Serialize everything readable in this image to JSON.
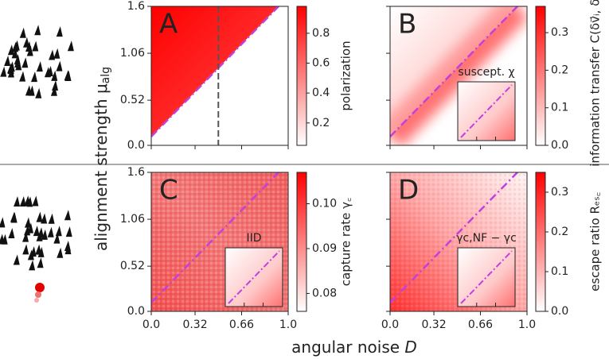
{
  "chart_data": {
    "type": "heatmap-grid",
    "xlabel": {
      "main": "angular noise ",
      "var": "D"
    },
    "ylabel": {
      "main": "alignment strength μ",
      "sub": "alg"
    },
    "xlim": [
      0,
      1
    ],
    "ylim": [
      0,
      1.6
    ],
    "xticks": [
      {
        "value": 0,
        "label": "0.0"
      },
      0.32,
      0.66,
      {
        "value": 1,
        "label": "1.0"
      }
    ],
    "yticks": [
      {
        "value": 0,
        "label": "0.0"
      },
      0.52,
      1.06,
      1.6
    ],
    "critical_line": {
      "x": [
        0,
        0.93
      ],
      "y": [
        0.1,
        1.6
      ]
    },
    "panels": [
      {
        "letter": "A",
        "style": "polarization",
        "color": "#ff0000",
        "dashed_x": 0.49,
        "colorbar": {
          "label": "polarization",
          "lim": [
            0.05,
            0.98
          ],
          "ticks": [
            0.2,
            0.4,
            0.6,
            0.8
          ]
        }
      },
      {
        "letter": "B",
        "style": "band",
        "color": "#ff0000",
        "inset": "suscept. χ",
        "colorbar": {
          "label": "information transfer C(δv⃗ᵢ, δv⃗ⱼ)",
          "lim": [
            0,
            0.37
          ],
          "ticks": [
            {
              "value": 0,
              "label": "0.0"
            },
            0.1,
            0.2,
            0.3
          ]
        }
      },
      {
        "letter": "C",
        "style": "noise",
        "color": "#ff0000",
        "inset": "IID",
        "colorbar": {
          "label": "capture rate γ꜀",
          "lim": [
            0.076,
            0.107
          ],
          "ticks": [
            0.08,
            0.09,
            {
              "value": 0.1,
              "label": "0.10"
            }
          ]
        }
      },
      {
        "letter": "D",
        "style": "corner",
        "color": "#ff0000",
        "inset": "γc,NF − γc",
        "colorbar": {
          "label": "escape ratio Rₑₛ꜀",
          "lim": [
            0,
            0.35
          ],
          "ticks": [
            {
              "value": 0,
              "label": "0.0"
            },
            0.1,
            0.2,
            0.3
          ]
        }
      }
    ]
  }
}
